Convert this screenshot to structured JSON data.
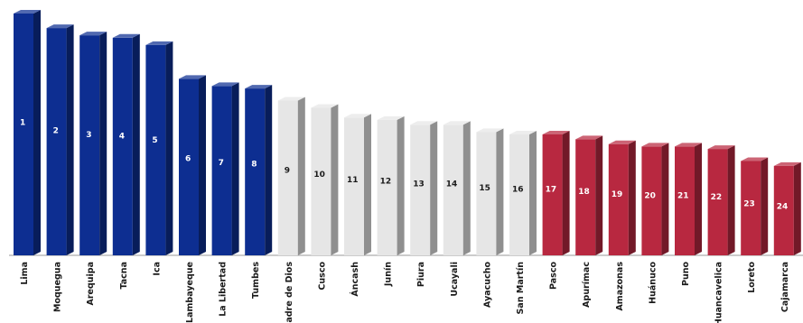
{
  "chart_data": {
    "type": "bar",
    "title": "",
    "xlabel": "",
    "ylabel": "",
    "ylim": [
      0,
      100
    ],
    "grid": false,
    "categories": [
      "Lima",
      "Moquegua",
      "Arequipa",
      "Tacna",
      "Ica",
      "Lambayeque",
      "La Libertad",
      "Tumbes",
      "Madre de Dios",
      "Cusco",
      "Áncash",
      "Junín",
      "Piura",
      "Ucayali",
      "Ayacucho",
      "San Martín",
      "Pasco",
      "Apurímac",
      "Amazonas",
      "Huánuco",
      "Puno",
      "Huancavelica",
      "Loreto",
      "Cajamarca"
    ],
    "values": [
      100,
      94,
      91,
      90,
      87,
      73,
      70,
      69,
      64,
      61,
      57,
      56,
      54,
      54,
      51,
      50,
      50,
      48,
      46,
      45,
      45,
      44,
      39,
      37
    ],
    "labels": [
      "1",
      "2",
      "3",
      "4",
      "5",
      "6",
      "7",
      "8",
      "9",
      "10",
      "11",
      "12",
      "13",
      "14",
      "15",
      "16",
      "17",
      "18",
      "19",
      "20",
      "21",
      "22",
      "23",
      "24"
    ],
    "group_colors": {
      "top": "#0d2e91",
      "middle": "#e6e6e6",
      "bottom": "#b82840"
    },
    "groups": [
      "top",
      "top",
      "top",
      "top",
      "top",
      "top",
      "top",
      "top",
      "middle",
      "middle",
      "middle",
      "middle",
      "middle",
      "middle",
      "middle",
      "middle",
      "bottom",
      "bottom",
      "bottom",
      "bottom",
      "bottom",
      "bottom",
      "bottom",
      "bottom"
    ]
  }
}
